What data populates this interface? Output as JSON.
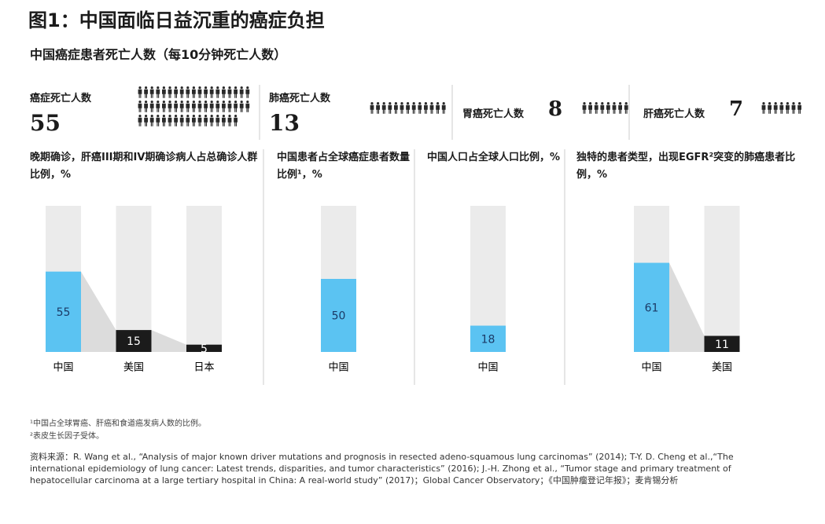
{
  "title": "图1：中国面临日益沉重的癌症负担",
  "subtitle": "中国癌症患者死亡人数（每10分钟死亡人数）",
  "deaths": [
    {
      "label": "癌症死亡人数",
      "value": 55
    },
    {
      "label": "肺癌死亡人数",
      "value": 13
    },
    {
      "label": "胃癌死亡人数",
      "value": 8
    },
    {
      "label": "肝癌死亡人数",
      "value": 7
    }
  ],
  "chart_data": [
    {
      "type": "bar",
      "title": "晚期确诊，肝癌III期和IV期确诊病人占总确诊人群比例，%",
      "categories": [
        "中国",
        "美国",
        "日本"
      ],
      "values": [
        55,
        15,
        5
      ],
      "colors": [
        "#5bc3f2",
        "#1b1b1b",
        "#1b1b1b"
      ],
      "ylim": [
        0,
        100
      ]
    },
    {
      "type": "bar",
      "title": "中国患者占全球癌症患者数量比例¹，%",
      "categories": [
        "中国"
      ],
      "values": [
        50
      ],
      "colors": [
        "#5bc3f2"
      ],
      "ylim": [
        0,
        100
      ]
    },
    {
      "type": "bar",
      "title": "中国人口占全球人口比例，%",
      "categories": [
        "中国"
      ],
      "values": [
        18
      ],
      "colors": [
        "#5bc3f2"
      ],
      "ylim": [
        0,
        100
      ]
    },
    {
      "type": "bar",
      "title": "独特的患者类型，出现EGFR²突变的肺癌患者比例，%",
      "categories": [
        "中国",
        "美国"
      ],
      "values": [
        61,
        11
      ],
      "colors": [
        "#5bc3f2",
        "#1b1b1b"
      ],
      "ylim": [
        0,
        100
      ]
    }
  ],
  "footnotes": [
    "¹中国占全球胃癌、肝癌和食道癌发病人数的比例。",
    "²表皮生长因子受体。"
  ],
  "source": "资料来源：R. Wang et al., “Analysis of major known driver mutations and prognosis in resected adeno-squamous lung carcinomas” (2014); T-Y. D. Cheng et al.,“The international epidemiology of lung cancer: Latest trends, disparities, and tumor characteristics” (2016); J.-H. Zhong et al., “Tumor stage and primary treatment of hepatocellular carcinoma at a large tertiary hospital in China: A real-world study” (2017)；Global Cancer Observatory；《中国肿瘤登记年报》；麦肯锡分析"
}
